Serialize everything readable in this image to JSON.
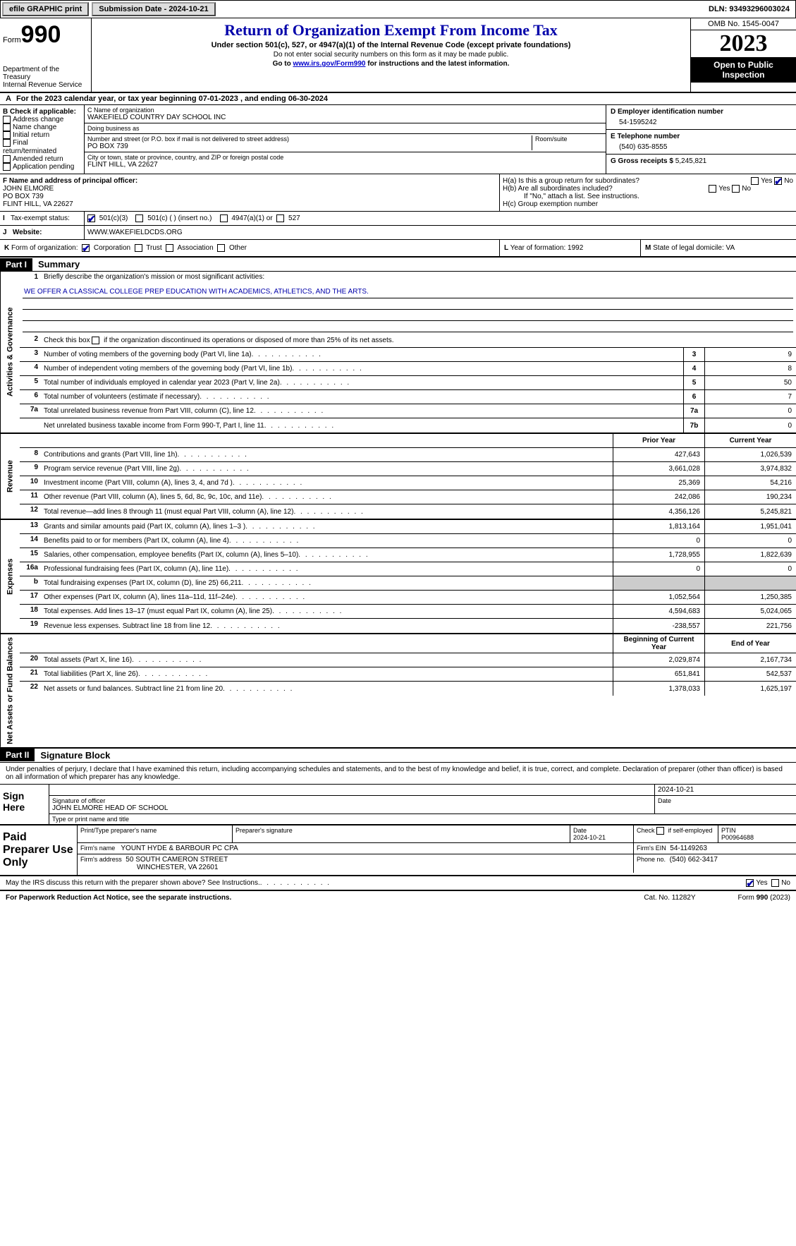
{
  "topbar": {
    "efile_label": "efile GRAPHIC print",
    "submission_label": "Submission Date - 2024-10-21",
    "dln_label": "DLN: 93493296003024"
  },
  "header": {
    "form_word": "Form",
    "form_number": "990",
    "dept": "Department of the Treasury",
    "irs": "Internal Revenue Service",
    "title": "Return of Organization Exempt From Income Tax",
    "subtitle": "Under section 501(c), 527, or 4947(a)(1) of the Internal Revenue Code (except private foundations)",
    "note1": "Do not enter social security numbers on this form as it may be made public.",
    "note2_pre": "Go to ",
    "note2_link": "www.irs.gov/Form990",
    "note2_post": " for instructions and the latest information.",
    "omb": "OMB No. 1545-0047",
    "year": "2023",
    "inspection": "Open to Public Inspection"
  },
  "period": {
    "line_a": "A",
    "text": "For the 2023 calendar year, or tax year beginning 07-01-2023   , and ending 06-30-2024"
  },
  "boxB": {
    "header": "B Check if applicable:",
    "items": [
      "Address change",
      "Name change",
      "Initial return",
      "Final return/terminated",
      "Amended return",
      "Application pending"
    ]
  },
  "boxC": {
    "name_label": "C Name of organization",
    "name": "WAKEFIELD COUNTRY DAY SCHOOL INC",
    "dba_label": "Doing business as",
    "dba": "",
    "street_label": "Number and street (or P.O. box if mail is not delivered to street address)",
    "room_label": "Room/suite",
    "street": "PO BOX 739",
    "city_label": "City or town, state or province, country, and ZIP or foreign postal code",
    "city": "FLINT HILL, VA  22627"
  },
  "boxD": {
    "label": "D Employer identification number",
    "value": "54-1595242"
  },
  "boxE": {
    "label": "E Telephone number",
    "value": "(540) 635-8555"
  },
  "boxG": {
    "label": "G Gross receipts $ ",
    "value": "5,245,821"
  },
  "boxF": {
    "label": "F  Name and address of principal officer:",
    "name": "JOHN ELMORE",
    "street": "PO BOX 739",
    "city": "FLINT HILL, VA  22627"
  },
  "boxH": {
    "a_label": "H(a)  Is this a group return for subordinates?",
    "b_label": "H(b)  Are all subordinates included?",
    "note": "If \"No,\" attach a list. See instructions.",
    "c_label": "H(c)  Group exemption number",
    "yes": "Yes",
    "no": "No"
  },
  "rowI": {
    "label": "I",
    "text": "Tax-exempt status:",
    "opt1": "501(c)(3)",
    "opt2": "501(c) (  ) (insert no.)",
    "opt3": "4947(a)(1) or",
    "opt4": "527"
  },
  "rowJ": {
    "label": "J",
    "text": "Website:",
    "value": "WWW.WAKEFIELDCDS.ORG"
  },
  "rowK": {
    "label": "K",
    "text": "Form of organization:",
    "opts": [
      "Corporation",
      "Trust",
      "Association",
      "Other"
    ]
  },
  "rowL": {
    "label": "L",
    "text": "Year of formation: 1992"
  },
  "rowM": {
    "label": "M",
    "text": "State of legal domicile: VA"
  },
  "part1": {
    "header": "Part I",
    "title": "Summary",
    "line1_label": "1",
    "line1_text": "Briefly describe the organization's mission or most significant activities:",
    "mission": "WE OFFER A CLASSICAL COLLEGE PREP EDUCATION WITH ACADEMICS, ATHLETICS, AND THE ARTS.",
    "line2_label": "2",
    "line2_text": "Check this box       if the organization discontinued its operations or disposed of more than 25% of its net assets.",
    "governance_label": "Activities & Governance",
    "revenue_label": "Revenue",
    "expenses_label": "Expenses",
    "netassets_label": "Net Assets or Fund Balances",
    "col_prior": "Prior Year",
    "col_current": "Current Year",
    "col_begin": "Beginning of Current Year",
    "col_end": "End of Year",
    "gov_lines": [
      {
        "num": "3",
        "desc": "Number of voting members of the governing body (Part VI, line 1a)",
        "box": "3",
        "val": "9"
      },
      {
        "num": "4",
        "desc": "Number of independent voting members of the governing body (Part VI, line 1b)",
        "box": "4",
        "val": "8"
      },
      {
        "num": "5",
        "desc": "Total number of individuals employed in calendar year 2023 (Part V, line 2a)",
        "box": "5",
        "val": "50"
      },
      {
        "num": "6",
        "desc": "Total number of volunteers (estimate if necessary)",
        "box": "6",
        "val": "7"
      },
      {
        "num": "7a",
        "desc": "Total unrelated business revenue from Part VIII, column (C), line 12",
        "box": "7a",
        "val": "0"
      },
      {
        "num": "",
        "desc": "Net unrelated business taxable income from Form 990-T, Part I, line 11",
        "box": "7b",
        "val": "0"
      }
    ],
    "rev_lines": [
      {
        "num": "8",
        "desc": "Contributions and grants (Part VIII, line 1h)",
        "prior": "427,643",
        "curr": "1,026,539"
      },
      {
        "num": "9",
        "desc": "Program service revenue (Part VIII, line 2g)",
        "prior": "3,661,028",
        "curr": "3,974,832"
      },
      {
        "num": "10",
        "desc": "Investment income (Part VIII, column (A), lines 3, 4, and 7d )",
        "prior": "25,369",
        "curr": "54,216"
      },
      {
        "num": "11",
        "desc": "Other revenue (Part VIII, column (A), lines 5, 6d, 8c, 9c, 10c, and 11e)",
        "prior": "242,086",
        "curr": "190,234"
      },
      {
        "num": "12",
        "desc": "Total revenue—add lines 8 through 11 (must equal Part VIII, column (A), line 12)",
        "prior": "4,356,126",
        "curr": "5,245,821"
      }
    ],
    "exp_lines": [
      {
        "num": "13",
        "desc": "Grants and similar amounts paid (Part IX, column (A), lines 1–3 )",
        "prior": "1,813,164",
        "curr": "1,951,041"
      },
      {
        "num": "14",
        "desc": "Benefits paid to or for members (Part IX, column (A), line 4)",
        "prior": "0",
        "curr": "0"
      },
      {
        "num": "15",
        "desc": "Salaries, other compensation, employee benefits (Part IX, column (A), lines 5–10)",
        "prior": "1,728,955",
        "curr": "1,822,639"
      },
      {
        "num": "16a",
        "desc": "Professional fundraising fees (Part IX, column (A), line 11e)",
        "prior": "0",
        "curr": "0"
      },
      {
        "num": "b",
        "desc": "Total fundraising expenses (Part IX, column (D), line 25) 66,211",
        "prior": "",
        "curr": "",
        "shade": true
      },
      {
        "num": "17",
        "desc": "Other expenses (Part IX, column (A), lines 11a–11d, 11f–24e)",
        "prior": "1,052,564",
        "curr": "1,250,385"
      },
      {
        "num": "18",
        "desc": "Total expenses. Add lines 13–17 (must equal Part IX, column (A), line 25)",
        "prior": "4,594,683",
        "curr": "5,024,065"
      },
      {
        "num": "19",
        "desc": "Revenue less expenses. Subtract line 18 from line 12",
        "prior": "-238,557",
        "curr": "221,756"
      }
    ],
    "na_lines": [
      {
        "num": "20",
        "desc": "Total assets (Part X, line 16)",
        "prior": "2,029,874",
        "curr": "2,167,734"
      },
      {
        "num": "21",
        "desc": "Total liabilities (Part X, line 26)",
        "prior": "651,841",
        "curr": "542,537"
      },
      {
        "num": "22",
        "desc": "Net assets or fund balances. Subtract line 21 from line 20",
        "prior": "1,378,033",
        "curr": "1,625,197"
      }
    ]
  },
  "part2": {
    "header": "Part II",
    "title": "Signature Block",
    "declaration": "Under penalties of perjury, I declare that I have examined this return, including accompanying schedules and statements, and to the best of my knowledge and belief, it is true, correct, and complete. Declaration of preparer (other than officer) is based on all information of which preparer has any knowledge.",
    "sign_here": "Sign Here",
    "sig_of_officer": "Signature of officer",
    "date_label": "Date",
    "officer_name": "JOHN ELMORE HEAD OF SCHOOL",
    "type_print": "Type or print name and title",
    "sig_date": "2024-10-21",
    "paid_prep": "Paid Preparer Use Only",
    "prep_name_label": "Print/Type preparer's name",
    "prep_sig_label": "Preparer's signature",
    "prep_date_label": "Date",
    "prep_date": "2024-10-21",
    "check_self": "Check        if self-employed",
    "ptin_label": "PTIN",
    "ptin": "P00964688",
    "firm_name_label": "Firm's name",
    "firm_name": "YOUNT HYDE & BARBOUR PC CPA",
    "firm_ein_label": "Firm's EIN",
    "firm_ein": "54-1149263",
    "firm_addr_label": "Firm's address",
    "firm_addr1": "50 SOUTH CAMERON STREET",
    "firm_addr2": "WINCHESTER, VA  22601",
    "phone_label": "Phone no.",
    "phone": "(540) 662-3417",
    "discuss": "May the IRS discuss this return with the preparer shown above? See Instructions.",
    "yes": "Yes",
    "no": "No"
  },
  "footer": {
    "pra": "For Paperwork Reduction Act Notice, see the separate instructions.",
    "catno": "Cat. No. 11282Y",
    "formref": "Form 990 (2023)"
  }
}
